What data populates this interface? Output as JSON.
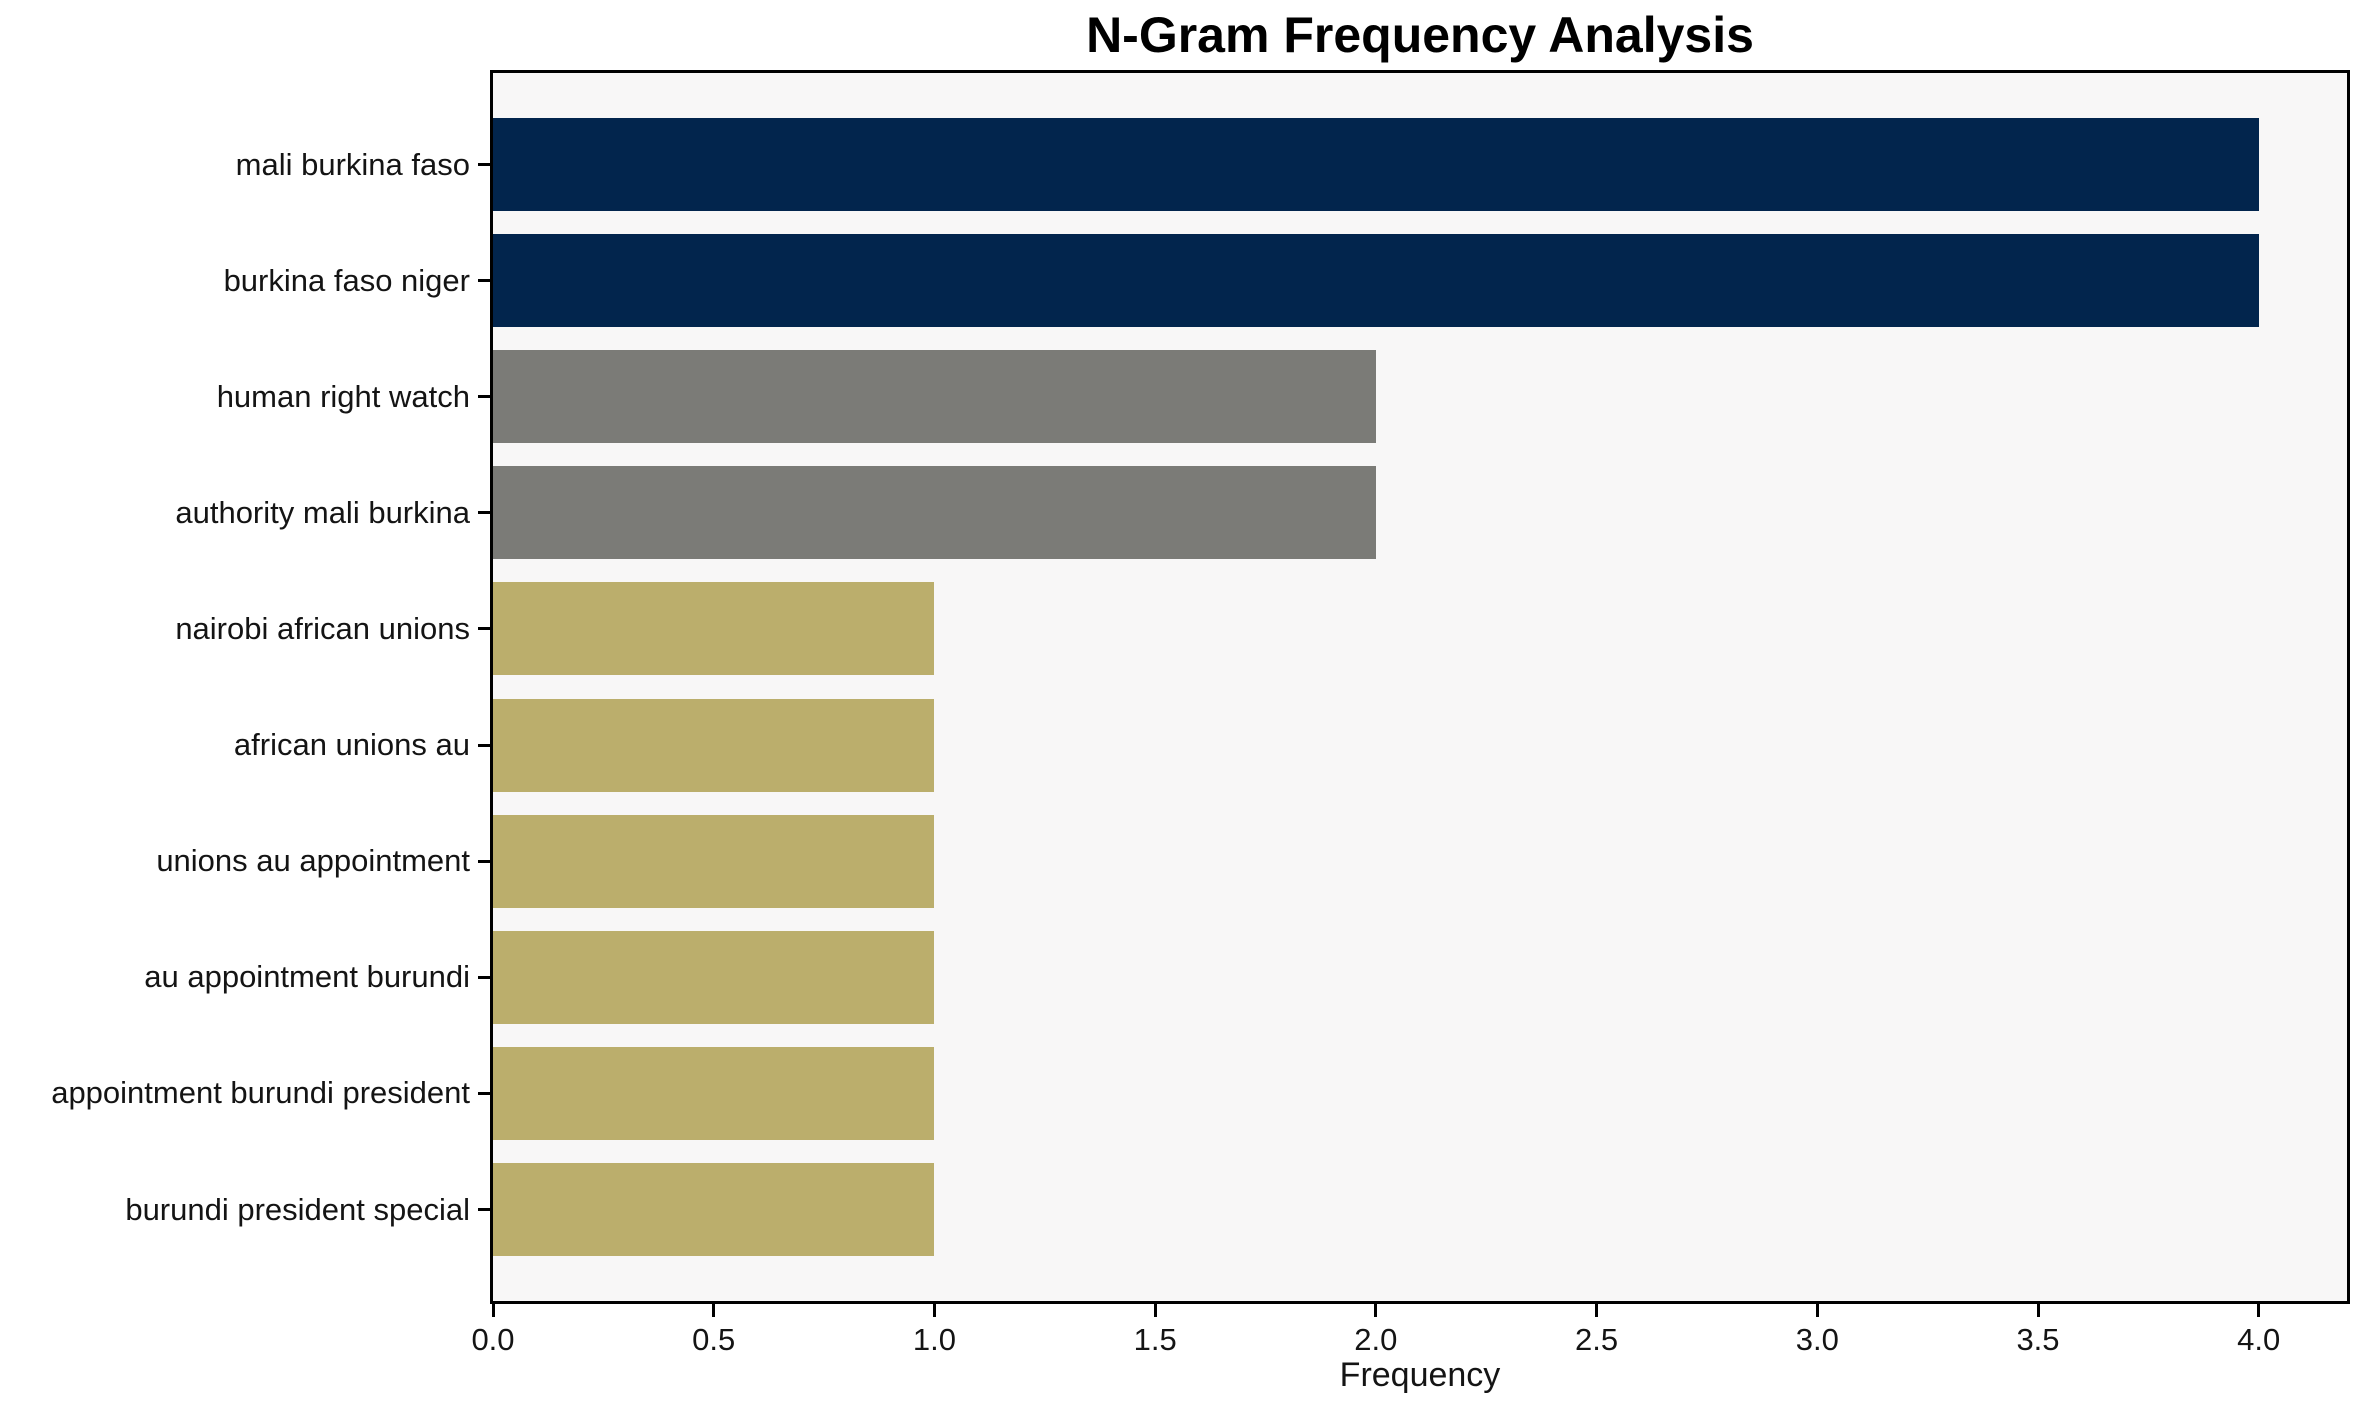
{
  "chart_data": {
    "type": "bar",
    "orientation": "horizontal",
    "title": "N-Gram Frequency Analysis",
    "xlabel": "Frequency",
    "categories": [
      "mali burkina faso",
      "burkina faso niger",
      "human right watch",
      "authority mali burkina",
      "nairobi african unions",
      "african unions au",
      "unions au appointment",
      "au appointment burundi",
      "appointment burundi president",
      "burundi president special"
    ],
    "values": [
      4,
      4,
      2,
      2,
      1,
      1,
      1,
      1,
      1,
      1
    ],
    "bar_colors": [
      "#02254d",
      "#02254d",
      "#7b7b77",
      "#7b7b77",
      "#bbae6c",
      "#bbae6c",
      "#bbae6c",
      "#bbae6c",
      "#bbae6c",
      "#bbae6c"
    ],
    "xlim": [
      0,
      4.2
    ],
    "xticks": [
      0,
      0.5,
      1.0,
      1.5,
      2.0,
      2.5,
      3.0,
      3.5,
      4.0
    ],
    "xtick_labels": [
      "0.0",
      "0.5",
      "1.0",
      "1.5",
      "2.0",
      "2.5",
      "3.0",
      "3.5",
      "4.0"
    ],
    "grid": false,
    "legend": "none",
    "colors": {
      "plot_background": "#f8f7f7",
      "figure_background": "#ffffff",
      "spine": "#000000",
      "text": "#141414"
    }
  }
}
